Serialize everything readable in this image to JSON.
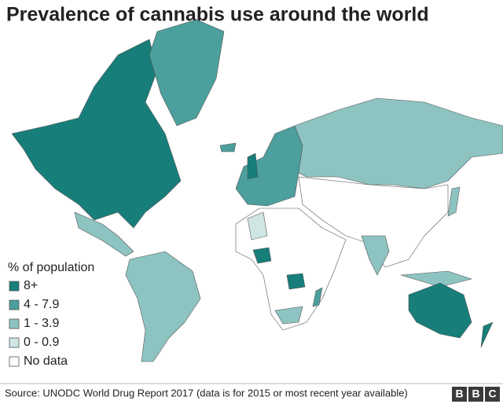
{
  "title": "Prevalence of cannabis use around the world",
  "legend": {
    "title": "% of population",
    "items": [
      {
        "label": "8+",
        "color": "#177e7a"
      },
      {
        "label": "4 - 7.9",
        "color": "#4b9f9c"
      },
      {
        "label": "1 - 3.9",
        "color": "#8dc4c2"
      },
      {
        "label": "0 - 0.9",
        "color": "#cfe6e5"
      },
      {
        "label": "No data",
        "color": "#ffffff"
      }
    ]
  },
  "source": "Source: UNODC World Drug Report 2017 (data is for 2015 or most recent year available)",
  "logo": [
    "B",
    "B",
    "C"
  ]
}
